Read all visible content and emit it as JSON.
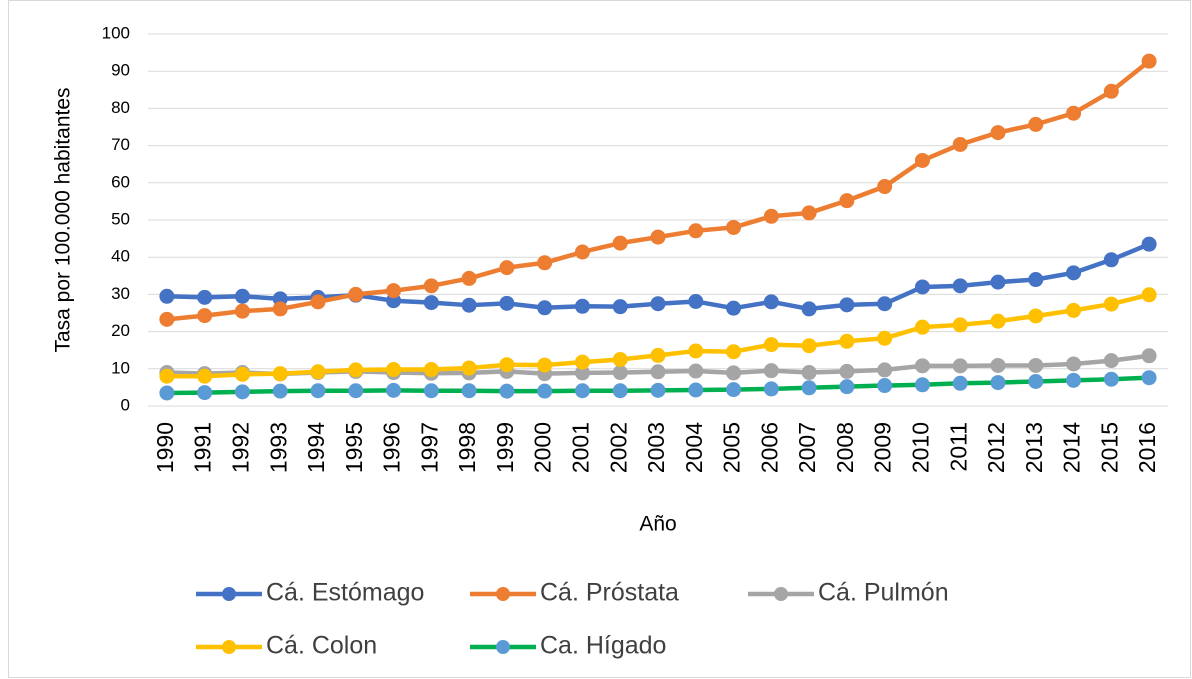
{
  "chart_data": {
    "type": "line",
    "y_axis_label": "Tasa por 100.000 habitantes",
    "x_axis_label": "Año",
    "categories": [
      "1990",
      "1991",
      "1992",
      "1993",
      "1994",
      "1995",
      "1996",
      "1997",
      "1998",
      "1999",
      "2000",
      "2001",
      "2002",
      "2003",
      "2004",
      "2005",
      "2006",
      "2007",
      "2008",
      "2009",
      "2010",
      "2011",
      "2012",
      "2013",
      "2014",
      "2015",
      "2016"
    ],
    "ylim": [
      0,
      100
    ],
    "yticks": [
      0,
      10,
      20,
      30,
      40,
      50,
      60,
      70,
      80,
      90,
      100
    ],
    "grid": true,
    "series": [
      {
        "name": "Cá. Estómago",
        "color": "#4472c4",
        "marker_color": "#4472c4",
        "values": [
          29.5,
          29.2,
          29.5,
          28.8,
          29.2,
          29.8,
          28.3,
          27.8,
          27.1,
          27.6,
          26.4,
          26.8,
          26.7,
          27.5,
          28.1,
          26.3,
          28.0,
          26.1,
          27.2,
          27.5,
          32.0,
          32.3,
          33.3,
          34.0,
          35.8,
          39.3,
          43.5
        ]
      },
      {
        "name": "Cá. Próstata",
        "color": "#ed7d31",
        "marker_color": "#ed7d31",
        "values": [
          23.3,
          24.3,
          25.5,
          26.1,
          28.0,
          30.0,
          31.0,
          32.3,
          34.3,
          37.2,
          38.5,
          41.4,
          43.8,
          45.4,
          47.1,
          48.0,
          51.0,
          51.9,
          55.2,
          59.0,
          66.0,
          70.3,
          73.5,
          75.7,
          78.7,
          84.6,
          92.7
        ]
      },
      {
        "name": "Cá. Pulmón",
        "color": "#a5a5a5",
        "marker_color": "#a5a5a5",
        "values": [
          9.0,
          8.7,
          9.0,
          8.6,
          9.0,
          9.3,
          9.0,
          8.8,
          8.9,
          9.3,
          8.7,
          8.9,
          9.0,
          9.2,
          9.4,
          8.9,
          9.5,
          9.0,
          9.3,
          9.7,
          10.8,
          10.8,
          10.9,
          10.9,
          11.3,
          12.2,
          13.5
        ]
      },
      {
        "name": "Cá. Colon",
        "color": "#ffc000",
        "marker_color": "#ffc000",
        "values": [
          8.0,
          8.0,
          8.5,
          8.7,
          9.2,
          9.7,
          9.8,
          9.8,
          10.2,
          11.1,
          11.0,
          11.8,
          12.5,
          13.6,
          14.8,
          14.6,
          16.5,
          16.2,
          17.4,
          18.2,
          21.2,
          21.8,
          22.8,
          24.2,
          25.7,
          27.4,
          29.9
        ]
      },
      {
        "name": "Ca. Hígado",
        "color": "#00b050",
        "marker_color": "#5b9bd5",
        "values": [
          3.5,
          3.6,
          3.8,
          4.0,
          4.1,
          4.1,
          4.2,
          4.1,
          4.1,
          4.0,
          4.0,
          4.1,
          4.1,
          4.2,
          4.3,
          4.4,
          4.6,
          4.9,
          5.2,
          5.5,
          5.7,
          6.1,
          6.3,
          6.6,
          6.9,
          7.2,
          7.6
        ]
      }
    ]
  }
}
